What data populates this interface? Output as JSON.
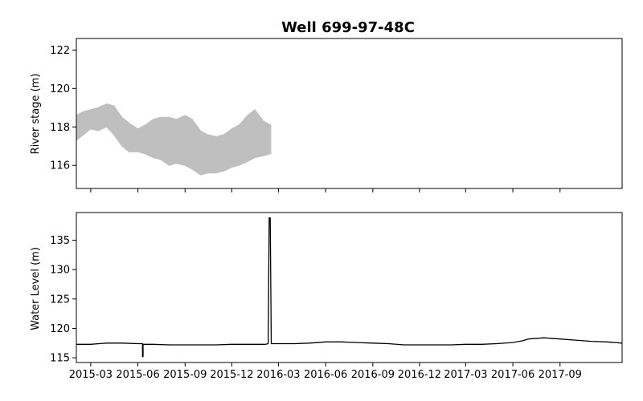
{
  "chart_data": [
    {
      "type": "line",
      "title": "Well 699-97-48C",
      "xlabel": "",
      "ylabel": "River stage (m)",
      "xlim": [
        "2015-02-01",
        "2017-12-31"
      ],
      "ylim": [
        114.8,
        122.6
      ],
      "yticks": [
        116,
        118,
        120,
        122
      ],
      "xticks": [
        "2015-03",
        "2015-06",
        "2015-09",
        "2015-12",
        "2016-03",
        "2016-06",
        "2016-09",
        "2016-12",
        "2017-03",
        "2017-06",
        "2017-09"
      ],
      "show_x_tick_labels": false,
      "grid": false,
      "series": [
        {
          "color": "#bfbfbf",
          "style": "band",
          "x": [
            "2015-02-01",
            "2015-02-15",
            "2015-03-01",
            "2015-03-15",
            "2015-04-01",
            "2015-04-15",
            "2015-05-01",
            "2015-05-15",
            "2015-06-01",
            "2015-06-15",
            "2015-07-01",
            "2015-07-15",
            "2015-08-01",
            "2015-08-15",
            "2015-09-01",
            "2015-09-15",
            "2015-10-01",
            "2015-10-15",
            "2015-11-01",
            "2015-11-15",
            "2015-12-01",
            "2015-12-15",
            "2016-01-01",
            "2016-01-15",
            "2016-02-01",
            "2016-02-15"
          ],
          "low": [
            117.3,
            117.6,
            117.9,
            117.8,
            118.0,
            117.6,
            117.0,
            116.7,
            116.7,
            116.6,
            116.4,
            116.3,
            116.0,
            116.1,
            116.0,
            115.8,
            115.5,
            115.6,
            115.6,
            115.7,
            115.9,
            116.0,
            116.2,
            116.4,
            116.5,
            116.6
          ],
          "high": [
            118.6,
            118.8,
            118.9,
            119.0,
            119.2,
            119.1,
            118.5,
            118.2,
            117.9,
            118.1,
            118.4,
            118.5,
            118.5,
            118.4,
            118.6,
            118.4,
            117.8,
            117.6,
            117.5,
            117.6,
            117.9,
            118.1,
            118.6,
            118.9,
            118.3,
            118.1
          ]
        }
      ]
    },
    {
      "type": "line",
      "title": "",
      "xlabel": "",
      "ylabel": "Water Level (m)",
      "xlim": [
        "2015-02-01",
        "2017-12-31"
      ],
      "ylim": [
        114.2,
        139.7
      ],
      "yticks": [
        115,
        120,
        125,
        130,
        135
      ],
      "xticks": [
        "2015-03",
        "2015-06",
        "2015-09",
        "2015-12",
        "2016-03",
        "2016-06",
        "2016-09",
        "2016-12",
        "2017-03",
        "2017-06",
        "2017-09"
      ],
      "show_x_tick_labels": true,
      "grid": false,
      "series": [
        {
          "color": "#000000",
          "style": "line",
          "x": [
            "2015-02-01",
            "2015-03-01",
            "2015-04-01",
            "2015-05-01",
            "2015-06-01",
            "2015-06-10",
            "2015-06-10",
            "2015-06-11",
            "2015-06-11",
            "2015-07-01",
            "2015-08-01",
            "2015-09-01",
            "2015-10-01",
            "2015-11-01",
            "2015-12-01",
            "2016-01-01",
            "2016-02-05",
            "2016-02-10",
            "2016-02-12",
            "2016-02-14",
            "2016-02-16",
            "2016-02-18",
            "2016-03-01",
            "2016-04-01",
            "2016-05-01",
            "2016-06-01",
            "2016-07-01",
            "2016-08-01",
            "2016-09-01",
            "2016-10-01",
            "2016-11-01",
            "2016-12-01",
            "2017-01-01",
            "2017-02-01",
            "2017-03-01",
            "2017-04-01",
            "2017-05-01",
            "2017-06-01",
            "2017-06-20",
            "2017-07-01",
            "2017-08-01",
            "2017-09-01",
            "2017-10-01",
            "2017-11-01",
            "2017-12-01",
            "2017-12-31"
          ],
          "y": [
            117.3,
            117.3,
            117.5,
            117.5,
            117.4,
            117.4,
            115.2,
            115.2,
            117.3,
            117.3,
            117.2,
            117.2,
            117.2,
            117.2,
            117.3,
            117.3,
            117.3,
            117.4,
            138.8,
            138.8,
            117.4,
            117.4,
            117.4,
            117.4,
            117.5,
            117.7,
            117.7,
            117.6,
            117.5,
            117.4,
            117.2,
            117.2,
            117.2,
            117.2,
            117.3,
            117.3,
            117.4,
            117.6,
            117.9,
            118.2,
            118.4,
            118.2,
            118.0,
            117.8,
            117.7,
            117.5
          ]
        }
      ]
    }
  ]
}
